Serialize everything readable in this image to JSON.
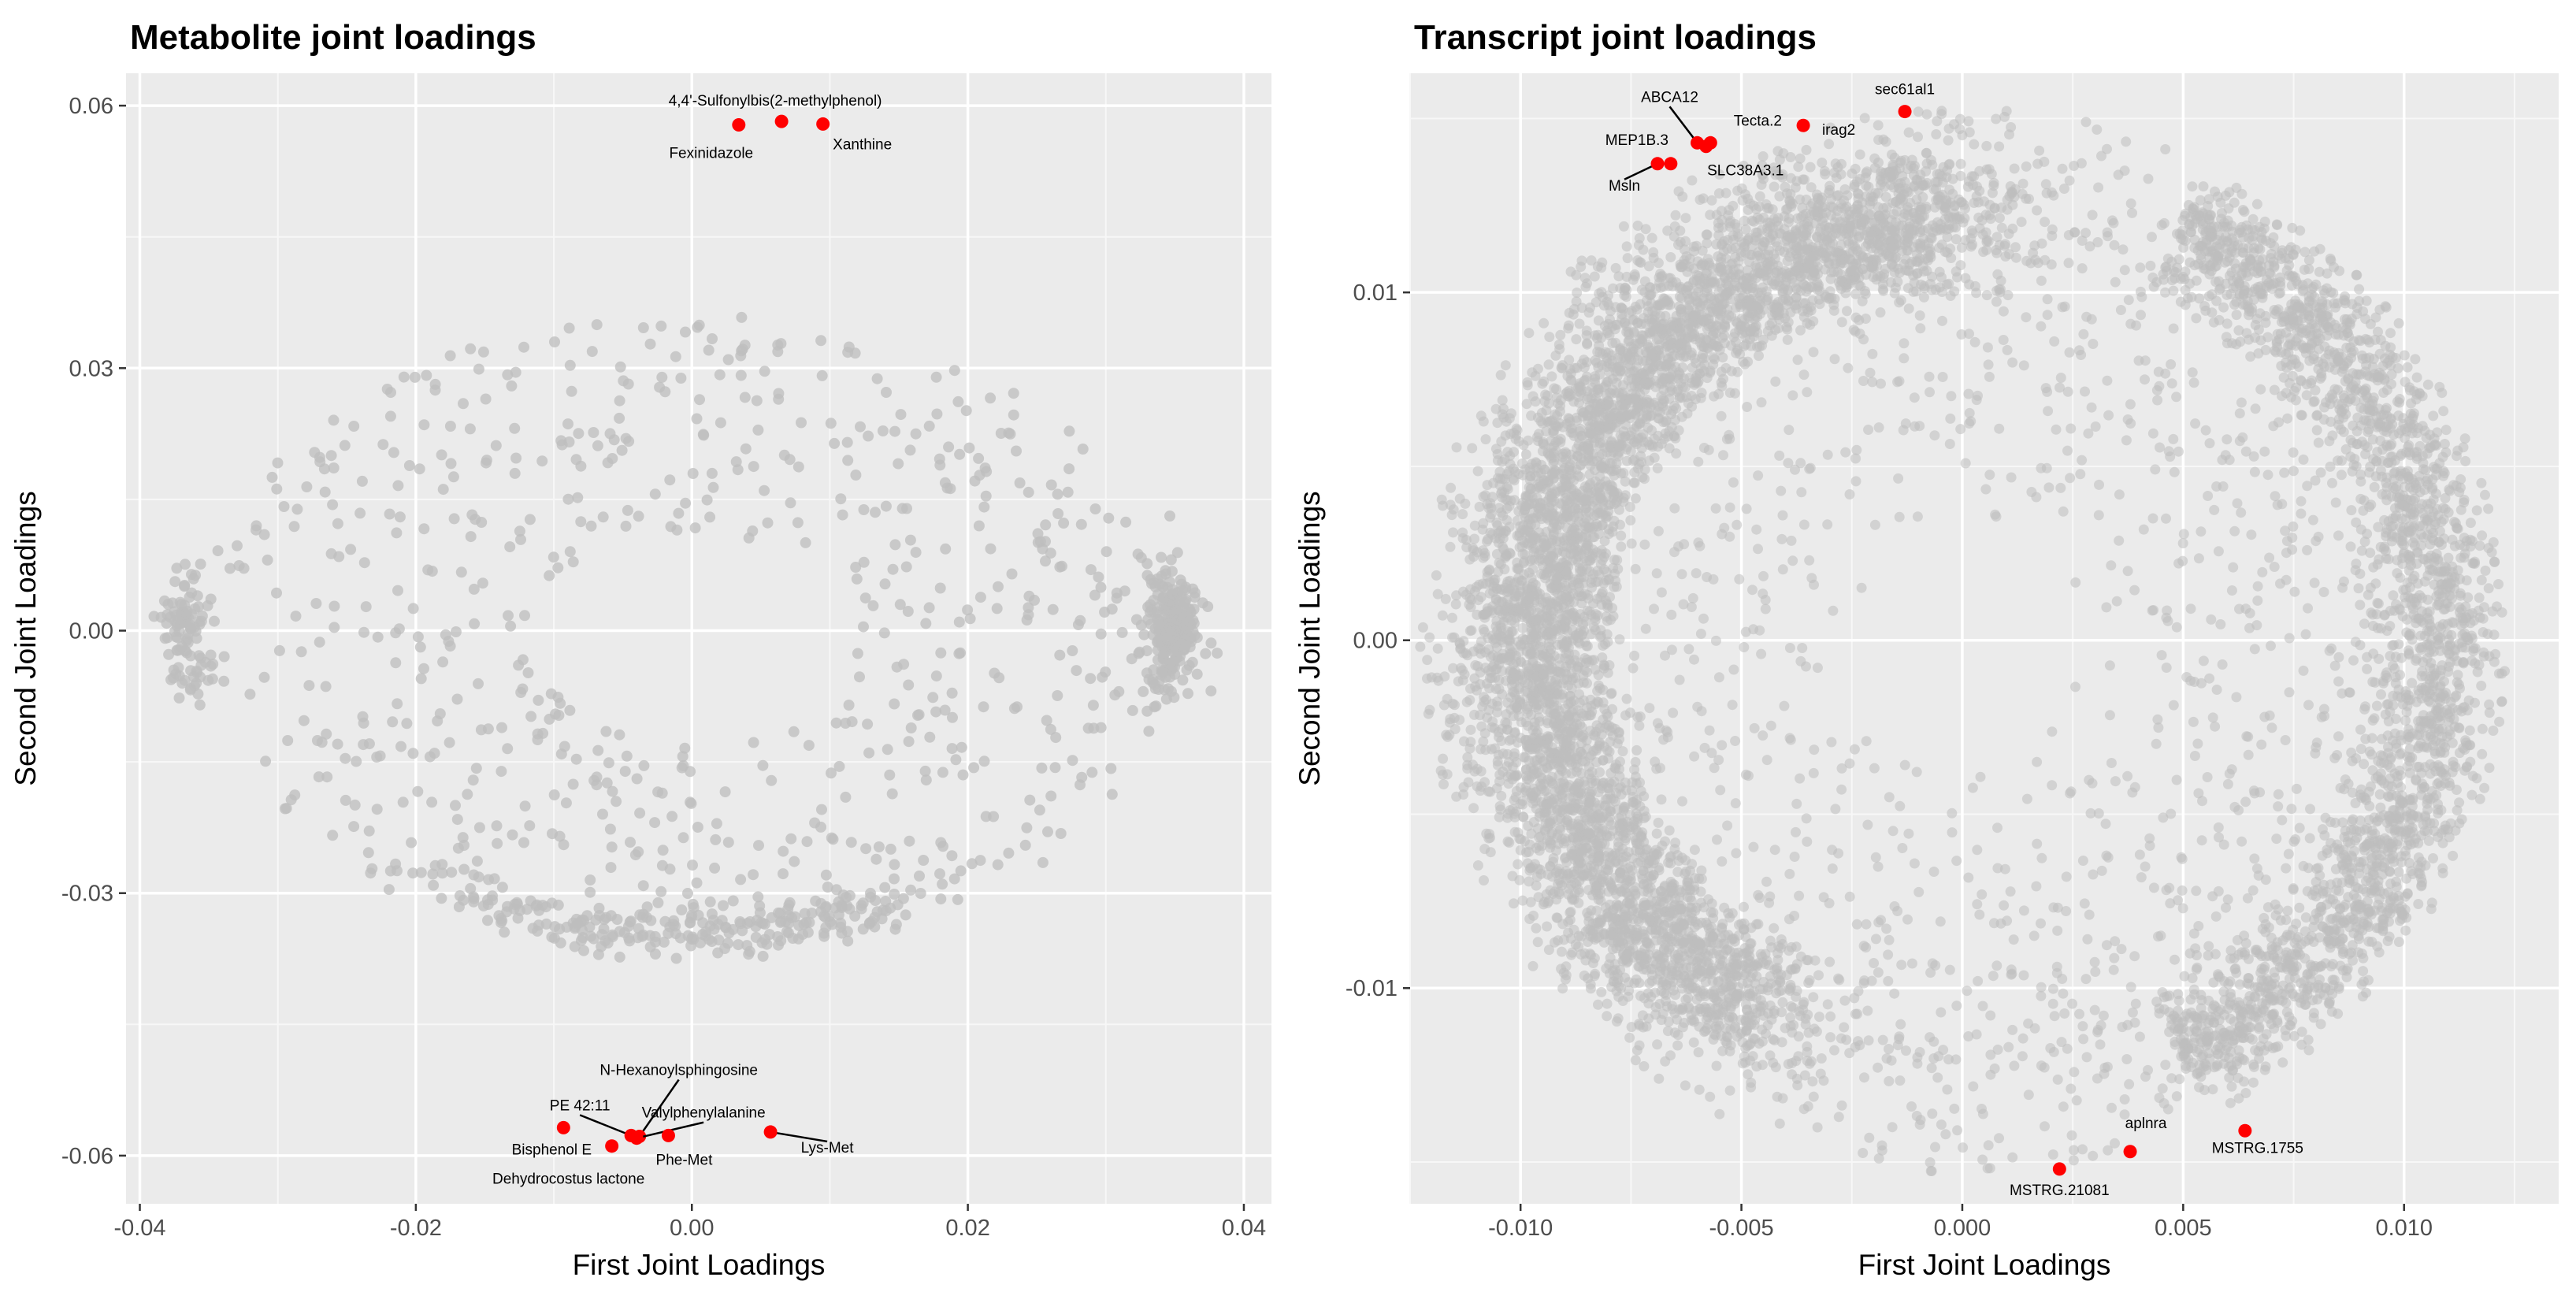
{
  "chart_data": [
    {
      "type": "scatter",
      "title": "Metabolite joint loadings",
      "xlabel": "First Joint Loadings",
      "ylabel": "Second Joint Loadings",
      "xlim": [
        -0.041,
        0.042
      ],
      "ylim": [
        -0.0655,
        0.0637
      ],
      "x_ticks": [
        -0.04,
        -0.02,
        0.0,
        0.02,
        0.04
      ],
      "x_tick_labels": [
        "-0.04",
        "-0.02",
        "0.00",
        "0.02",
        "0.04"
      ],
      "y_ticks": [
        -0.06,
        -0.03,
        0.0,
        0.03,
        0.06
      ],
      "y_tick_labels": [
        "-0.06",
        "-0.03",
        "0.00",
        "0.03",
        "0.06"
      ],
      "grid": true,
      "background": "#ebebeb",
      "point_color": "#bdbdbd",
      "highlight_color": "#ff0000",
      "background_points": {
        "count": 1250,
        "description_shape": "ring-like cloud, dense band along bottom arc and right edge",
        "approx_radius": 0.0375,
        "center": [
          0.0,
          0.0
        ]
      },
      "highlighted": [
        {
          "label": "4,4'-Sulfonylbis(2-methylphenol)",
          "x": 0.0065,
          "y": 0.0582
        },
        {
          "label": "Fexinidazole",
          "x": 0.0034,
          "y": 0.0578
        },
        {
          "label": "Xanthine",
          "x": 0.0095,
          "y": 0.0579
        },
        {
          "label": "N-Hexanoylsphingosine",
          "x": -0.0038,
          "y": -0.0578
        },
        {
          "label": "PE 42:11",
          "x": -0.0044,
          "y": -0.0577
        },
        {
          "label": "Valylphenylalanine",
          "x": -0.004,
          "y": -0.058
        },
        {
          "label": "Bisphenol E",
          "x": -0.0093,
          "y": -0.0568
        },
        {
          "label": "Dehydrocostus lactone",
          "x": -0.0058,
          "y": -0.0589
        },
        {
          "label": "Phe-Met",
          "x": -0.0017,
          "y": -0.0577
        },
        {
          "label": "Lys-Met",
          "x": 0.0057,
          "y": -0.0573
        }
      ]
    },
    {
      "type": "scatter",
      "title": "Transcript joint loadings",
      "xlabel": "First Joint Loadings",
      "ylabel": "Second Joint Loadings",
      "xlim": [
        -0.0125,
        0.0135
      ],
      "ylim": [
        -0.0162,
        0.0163
      ],
      "x_ticks": [
        -0.01,
        -0.005,
        0.0,
        0.005,
        0.01
      ],
      "x_tick_labels": [
        "-0.010",
        "-0.005",
        "0.000",
        "0.005",
        "0.010"
      ],
      "y_ticks": [
        -0.01,
        0.0,
        0.01
      ],
      "y_tick_labels": [
        "-0.01",
        "0.00",
        "0.01"
      ],
      "grid": true,
      "background": "#ebebeb",
      "point_color": "#bdbdbd",
      "highlight_color": "#ff0000",
      "background_points": {
        "count": 9000,
        "description_shape": "dense ring, heaviest on the left and upper-left arc",
        "approx_radius_x": 0.0123,
        "approx_radius_y": 0.0153,
        "center": [
          0.0,
          0.0
        ]
      },
      "highlighted": [
        {
          "label": "sec61al1",
          "x": -0.0013,
          "y": 0.0152
        },
        {
          "label": "ABCA12",
          "x": -0.006,
          "y": 0.0143
        },
        {
          "label": "Tecta.2",
          "x": -0.0057,
          "y": 0.0143
        },
        {
          "label": "irag2",
          "x": -0.0036,
          "y": 0.0148
        },
        {
          "label": "MEP1B.3",
          "x": -0.0066,
          "y": 0.0137
        },
        {
          "label": "SLC38A3.1",
          "x": -0.0058,
          "y": 0.0142
        },
        {
          "label": "Msln",
          "x": -0.0069,
          "y": 0.0137
        },
        {
          "label": "aplnra",
          "x": 0.0038,
          "y": -0.0147
        },
        {
          "label": "MSTRG.1755",
          "x": 0.0064,
          "y": -0.0141
        },
        {
          "label": "MSTRG.21081",
          "x": 0.0022,
          "y": -0.0152
        }
      ]
    }
  ]
}
